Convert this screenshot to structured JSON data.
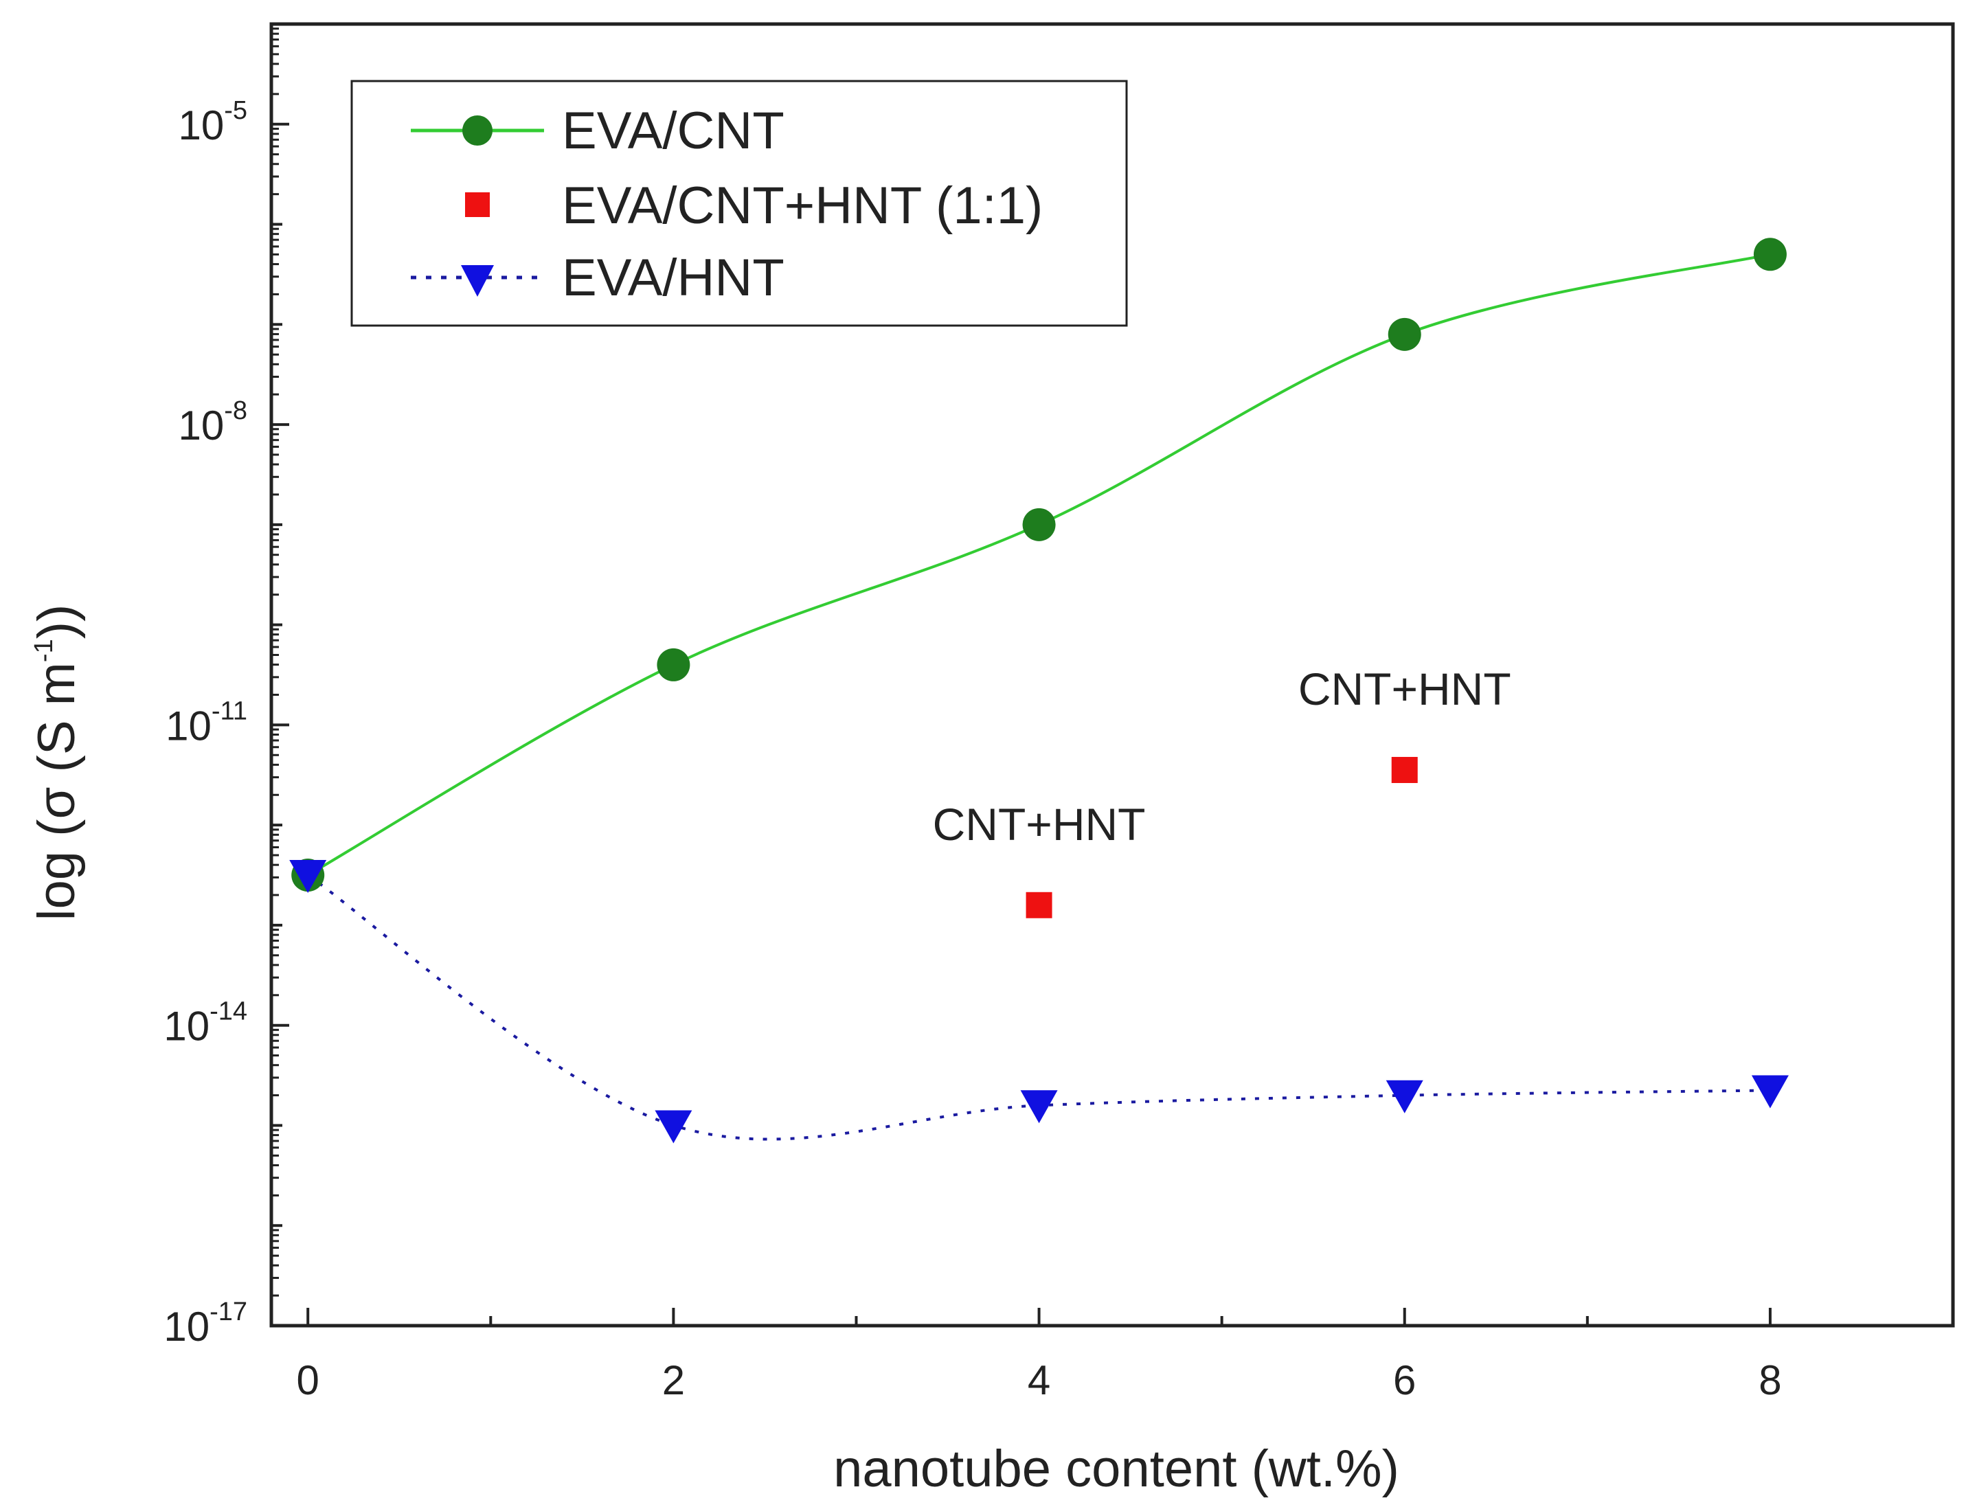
{
  "chart_data": {
    "type": "scatter",
    "title": "",
    "xlabel": "nanotube content  (wt.%)",
    "ylabel_prefix": "log (σ (S m",
    "ylabel_exponent": "-1",
    "ylabel_suffix": "))",
    "xlim": [
      -0.2,
      9
    ],
    "ylim_log10": [
      -17,
      -4
    ],
    "y_scale": "log",
    "x_ticks": [
      0,
      2,
      4,
      6,
      8
    ],
    "x_tick_labels": [
      "0",
      "2",
      "4",
      "6",
      "8"
    ],
    "y_ticks_log10": [
      -17,
      -14,
      -11,
      -8,
      -5
    ],
    "y_tick_labels": [
      {
        "base": "10",
        "exp": "-17"
      },
      {
        "base": "10",
        "exp": "-14"
      },
      {
        "base": "10",
        "exp": "-11"
      },
      {
        "base": "10",
        "exp": "-8"
      },
      {
        "base": "10",
        "exp": "-5"
      }
    ],
    "grid": false,
    "legend_position": "top-left",
    "series": [
      {
        "name": "EVA/CNT",
        "marker": "circle",
        "color": "#1e7d1e",
        "line_color": "#33cc33",
        "line_style": "solid",
        "x": [
          0,
          2,
          4,
          6,
          8
        ],
        "log10_y": [
          -12.5,
          -10.4,
          -9.0,
          -7.1,
          -6.3
        ]
      },
      {
        "name": "EVA/CNT+HNT (1:1)",
        "marker": "square",
        "color": "#ee1111",
        "line_style": "none",
        "x": [
          4,
          6
        ],
        "log10_y": [
          -12.8,
          -11.45
        ]
      },
      {
        "name": "EVA/HNT",
        "marker": "triangle-down",
        "color": "#1010e0",
        "line_color": "#1a1aa0",
        "line_style": "dotted",
        "x": [
          0,
          2,
          4,
          6,
          8
        ],
        "log10_y": [
          -12.5,
          -15.0,
          -14.8,
          -14.7,
          -14.65
        ]
      }
    ],
    "annotations": [
      {
        "text": "CNT+HNT",
        "x": 4,
        "log10_y": -12.8
      },
      {
        "text": "CNT+HNT",
        "x": 6,
        "log10_y": -11.45
      }
    ]
  }
}
